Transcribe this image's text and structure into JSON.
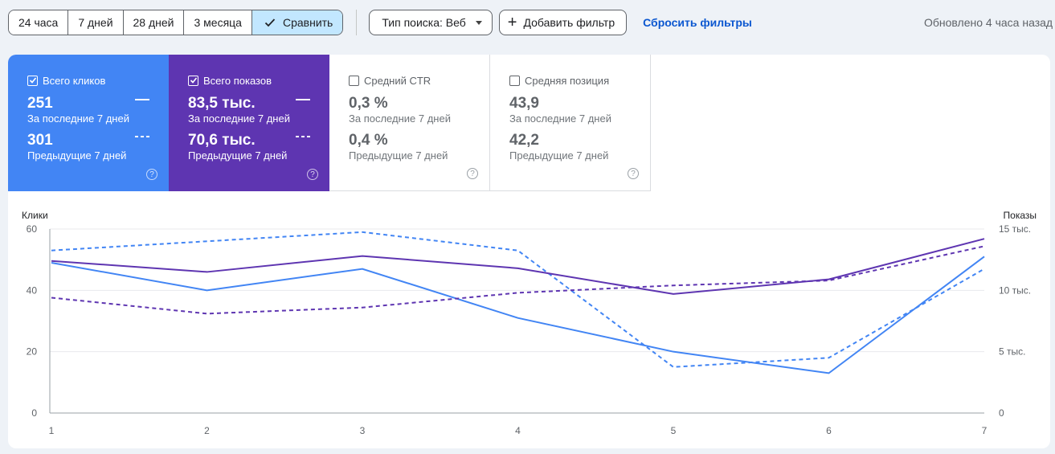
{
  "toolbar": {
    "ranges": [
      "24 часа",
      "7 дней",
      "28 дней",
      "3 месяца"
    ],
    "compare_label": "Сравнить",
    "search_type_label": "Тип поиска: Веб",
    "add_filter_label": "Добавить фильтр",
    "reset_filters_label": "Сбросить фильтры",
    "updated_text": "Обновлено 4 часа назад"
  },
  "cards": {
    "clicks": {
      "label": "Всего кликов",
      "current": "251",
      "current_sub": "За последние 7 дней",
      "previous": "301",
      "previous_sub": "Предыдущие 7 дней",
      "checked": true,
      "color": "#4285f4"
    },
    "impressions": {
      "label": "Всего показов",
      "current": "83,5 тыс.",
      "current_sub": "За последние 7 дней",
      "previous": "70,6 тыс.",
      "previous_sub": "Предыдущие 7 дней",
      "checked": true,
      "color": "#5e35b1"
    },
    "ctr": {
      "label": "Средний CTR",
      "current": "0,3 %",
      "current_sub": "За последние 7 дней",
      "previous": "0,4 %",
      "previous_sub": "Предыдущие 7 дней",
      "checked": false
    },
    "position": {
      "label": "Средняя позиция",
      "current": "43,9",
      "current_sub": "За последние 7 дней",
      "previous": "42,2",
      "previous_sub": "Предыдущие 7 дней",
      "checked": false
    }
  },
  "chart_data": {
    "type": "line",
    "x": [
      1,
      2,
      3,
      4,
      5,
      6,
      7
    ],
    "y_left_label": "Клики",
    "y_right_label": "Показы",
    "y_left_ticks": [
      "0",
      "20",
      "40",
      "60"
    ],
    "y_right_ticks": [
      "0",
      "5 тыс.",
      "10 тыс.",
      "15 тыс."
    ],
    "y_left_range": [
      0,
      60
    ],
    "y_right_range": [
      0,
      15000
    ],
    "grid": true,
    "series": [
      {
        "axis": "left",
        "style": "solid",
        "color": "#4285f4",
        "values": [
          49,
          40,
          47,
          31,
          20,
          13,
          51
        ]
      },
      {
        "axis": "left",
        "style": "dashed",
        "color": "#4285f4",
        "values": [
          53,
          56,
          59,
          53,
          15,
          18,
          47
        ]
      },
      {
        "axis": "right",
        "style": "solid",
        "color": "#5e35b1",
        "values": [
          12400,
          11500,
          12800,
          11800,
          9700,
          10900,
          14200
        ]
      },
      {
        "axis": "right",
        "style": "dashed",
        "color": "#5e35b1",
        "values": [
          9400,
          8100,
          8600,
          9800,
          10400,
          10800,
          13600
        ]
      }
    ]
  }
}
